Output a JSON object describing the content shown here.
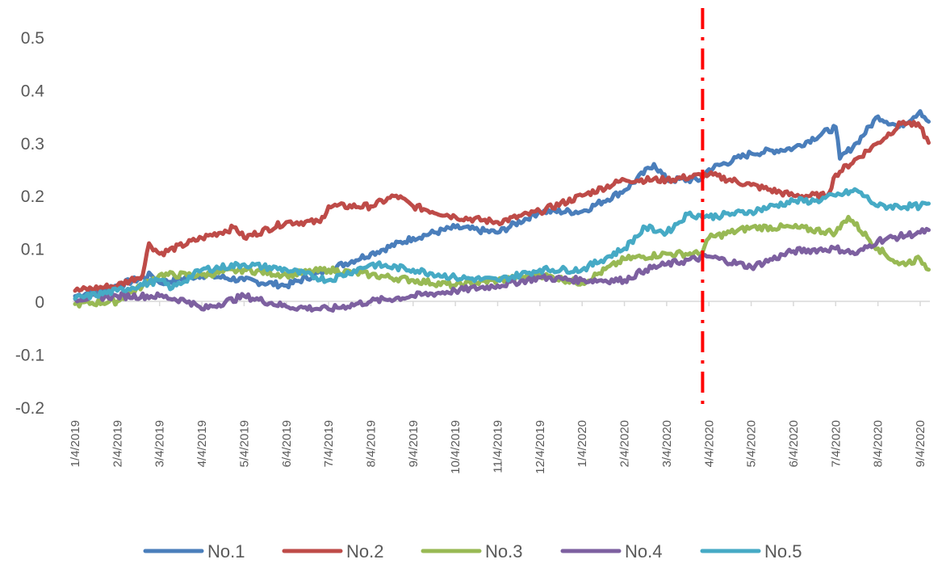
{
  "chart_data": {
    "type": "line",
    "title": "",
    "xlabel": "",
    "ylabel": "",
    "ylim": [
      -0.2,
      0.5
    ],
    "yticks": [
      "0.5",
      "0.4",
      "0.3",
      "0.2",
      "0.1",
      "0",
      "-0.1",
      "-0.2"
    ],
    "ytick_values": [
      0.5,
      0.4,
      0.3,
      0.2,
      0.1,
      0,
      -0.1,
      -0.2
    ],
    "x_unit": "months since 1/4/2019",
    "xlim": [
      0,
      20.2
    ],
    "categories": [
      "1/4/2019",
      "2/4/2019",
      "3/4/2019",
      "4/4/2019",
      "5/4/2019",
      "6/4/2019",
      "7/4/2019",
      "8/4/2019",
      "9/4/2019",
      "10/4/2019",
      "11/4/2019",
      "12/4/2019",
      "1/4/2020",
      "2/4/2020",
      "3/4/2020",
      "4/4/2020",
      "5/4/2020",
      "6/4/2020",
      "7/4/2020",
      "8/4/2020",
      "9/4/2020"
    ],
    "grid": false,
    "legend_position": "bottom",
    "annotations": [
      {
        "type": "vertical-dash-dot-line",
        "x": 14.85,
        "color": "#ff0000"
      }
    ],
    "series": [
      {
        "name": "No.1",
        "color": "#4a7ebb",
        "points": [
          [
            0,
            0.01
          ],
          [
            1,
            0.03
          ],
          [
            1.8,
            0.05
          ],
          [
            2,
            0.035
          ],
          [
            3,
            0.05
          ],
          [
            4,
            0.04
          ],
          [
            5,
            0.03
          ],
          [
            6,
            0.06
          ],
          [
            7,
            0.09
          ],
          [
            8,
            0.12
          ],
          [
            9,
            0.14
          ],
          [
            10,
            0.13
          ],
          [
            11,
            0.17
          ],
          [
            12,
            0.17
          ],
          [
            13,
            0.21
          ],
          [
            13.7,
            0.26
          ],
          [
            14,
            0.23
          ],
          [
            14.8,
            0.23
          ],
          [
            15,
            0.25
          ],
          [
            16,
            0.28
          ],
          [
            17,
            0.29
          ],
          [
            18,
            0.33
          ],
          [
            18.1,
            0.27
          ],
          [
            18.5,
            0.3
          ],
          [
            19,
            0.35
          ],
          [
            19.5,
            0.33
          ],
          [
            20,
            0.36
          ],
          [
            20.2,
            0.34
          ]
        ]
      },
      {
        "name": "No.2",
        "color": "#be4b48",
        "points": [
          [
            0,
            0.02
          ],
          [
            1,
            0.03
          ],
          [
            1.6,
            0.05
          ],
          [
            1.75,
            0.11
          ],
          [
            2,
            0.09
          ],
          [
            3,
            0.12
          ],
          [
            3.8,
            0.14
          ],
          [
            4,
            0.12
          ],
          [
            5,
            0.15
          ],
          [
            5.8,
            0.15
          ],
          [
            6,
            0.18
          ],
          [
            7,
            0.18
          ],
          [
            7.6,
            0.2
          ],
          [
            8,
            0.18
          ],
          [
            9,
            0.16
          ],
          [
            10,
            0.15
          ],
          [
            11,
            0.17
          ],
          [
            12,
            0.2
          ],
          [
            13,
            0.23
          ],
          [
            14,
            0.23
          ],
          [
            15,
            0.24
          ],
          [
            16,
            0.22
          ],
          [
            17,
            0.2
          ],
          [
            17.8,
            0.2
          ],
          [
            18,
            0.24
          ],
          [
            19,
            0.3
          ],
          [
            19.6,
            0.34
          ],
          [
            20,
            0.33
          ],
          [
            20.2,
            0.3
          ]
        ]
      },
      {
        "name": "No.3",
        "color": "#98b954",
        "points": [
          [
            0,
            -0.005
          ],
          [
            1,
            0.0
          ],
          [
            1.6,
            0.03
          ],
          [
            2,
            0.05
          ],
          [
            3,
            0.05
          ],
          [
            4,
            0.06
          ],
          [
            5,
            0.05
          ],
          [
            6,
            0.06
          ],
          [
            7,
            0.05
          ],
          [
            8,
            0.04
          ],
          [
            9,
            0.03
          ],
          [
            10,
            0.04
          ],
          [
            11,
            0.05
          ],
          [
            12,
            0.035
          ],
          [
            13,
            0.08
          ],
          [
            14,
            0.09
          ],
          [
            14.8,
            0.09
          ],
          [
            15,
            0.12
          ],
          [
            16,
            0.14
          ],
          [
            17,
            0.14
          ],
          [
            18,
            0.13
          ],
          [
            18.3,
            0.16
          ],
          [
            19,
            0.1
          ],
          [
            19.5,
            0.07
          ],
          [
            20,
            0.08
          ],
          [
            20.2,
            0.06
          ]
        ]
      },
      {
        "name": "No.4",
        "color": "#7d60a0",
        "points": [
          [
            0,
            0.005
          ],
          [
            1,
            0.01
          ],
          [
            2,
            0.01
          ],
          [
            2.7,
            0.0
          ],
          [
            3,
            -0.015
          ],
          [
            4,
            0.01
          ],
          [
            5,
            -0.01
          ],
          [
            6,
            -0.015
          ],
          [
            7,
            0.0
          ],
          [
            8,
            0.01
          ],
          [
            9,
            0.02
          ],
          [
            10,
            0.03
          ],
          [
            11,
            0.045
          ],
          [
            12,
            0.04
          ],
          [
            13,
            0.04
          ],
          [
            13.5,
            0.06
          ],
          [
            14,
            0.07
          ],
          [
            15,
            0.085
          ],
          [
            16,
            0.065
          ],
          [
            17,
            0.095
          ],
          [
            18,
            0.1
          ],
          [
            18.5,
            0.09
          ],
          [
            19,
            0.115
          ],
          [
            20,
            0.13
          ],
          [
            20.2,
            0.135
          ]
        ]
      },
      {
        "name": "No.5",
        "color": "#46aac5",
        "points": [
          [
            0,
            0.005
          ],
          [
            1,
            0.02
          ],
          [
            2,
            0.04
          ],
          [
            2.3,
            0.025
          ],
          [
            3,
            0.06
          ],
          [
            4,
            0.07
          ],
          [
            5,
            0.06
          ],
          [
            6,
            0.04
          ],
          [
            7,
            0.07
          ],
          [
            8,
            0.06
          ],
          [
            9,
            0.045
          ],
          [
            10,
            0.04
          ],
          [
            11,
            0.06
          ],
          [
            12,
            0.06
          ],
          [
            13,
            0.1
          ],
          [
            13.5,
            0.14
          ],
          [
            14,
            0.13
          ],
          [
            14.5,
            0.165
          ],
          [
            15,
            0.16
          ],
          [
            16,
            0.17
          ],
          [
            17,
            0.19
          ],
          [
            17.5,
            0.19
          ],
          [
            18,
            0.2
          ],
          [
            18.5,
            0.21
          ],
          [
            19,
            0.18
          ],
          [
            20,
            0.18
          ],
          [
            20.2,
            0.185
          ]
        ]
      }
    ]
  }
}
